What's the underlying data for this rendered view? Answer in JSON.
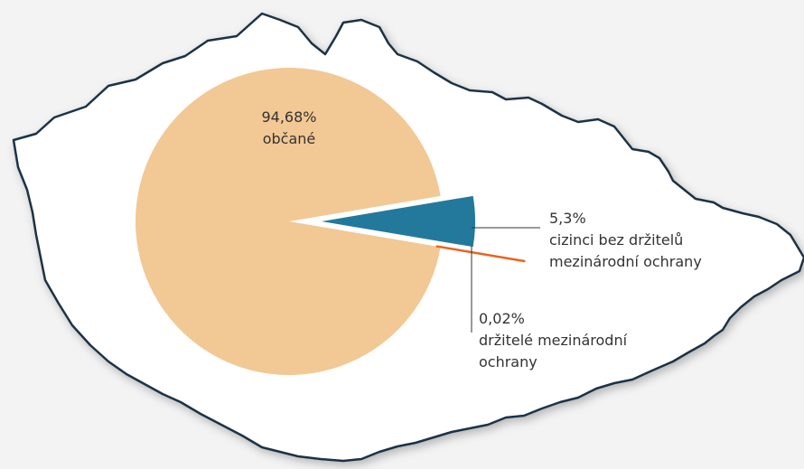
{
  "chart_data": {
    "type": "pie",
    "categories": [
      "občané",
      "cizinci bez držitelů mezinárodní ochrany",
      "držitelé mezinárodní ochrany"
    ],
    "values": [
      94.68,
      5.3,
      0.02
    ],
    "value_labels": [
      "94,68%",
      "5,3%",
      "0,02%"
    ],
    "colors": [
      "#f2c894",
      "#23799b",
      "#e8641e"
    ]
  }
}
